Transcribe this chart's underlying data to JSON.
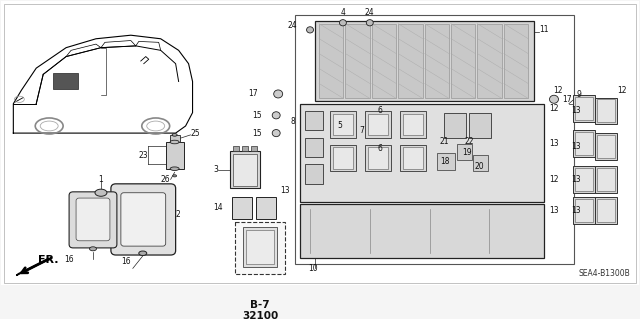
{
  "background_color": "#f5f5f5",
  "diagram_code": "SEA4-B1300B",
  "ref_code": "B-7\n32100",
  "fr_label": "FR.",
  "figure_width": 6.4,
  "figure_height": 3.19,
  "dpi": 100,
  "label_fontsize": 5.5,
  "bold_fontsize": 7.5,
  "code_fontsize": 5.5
}
